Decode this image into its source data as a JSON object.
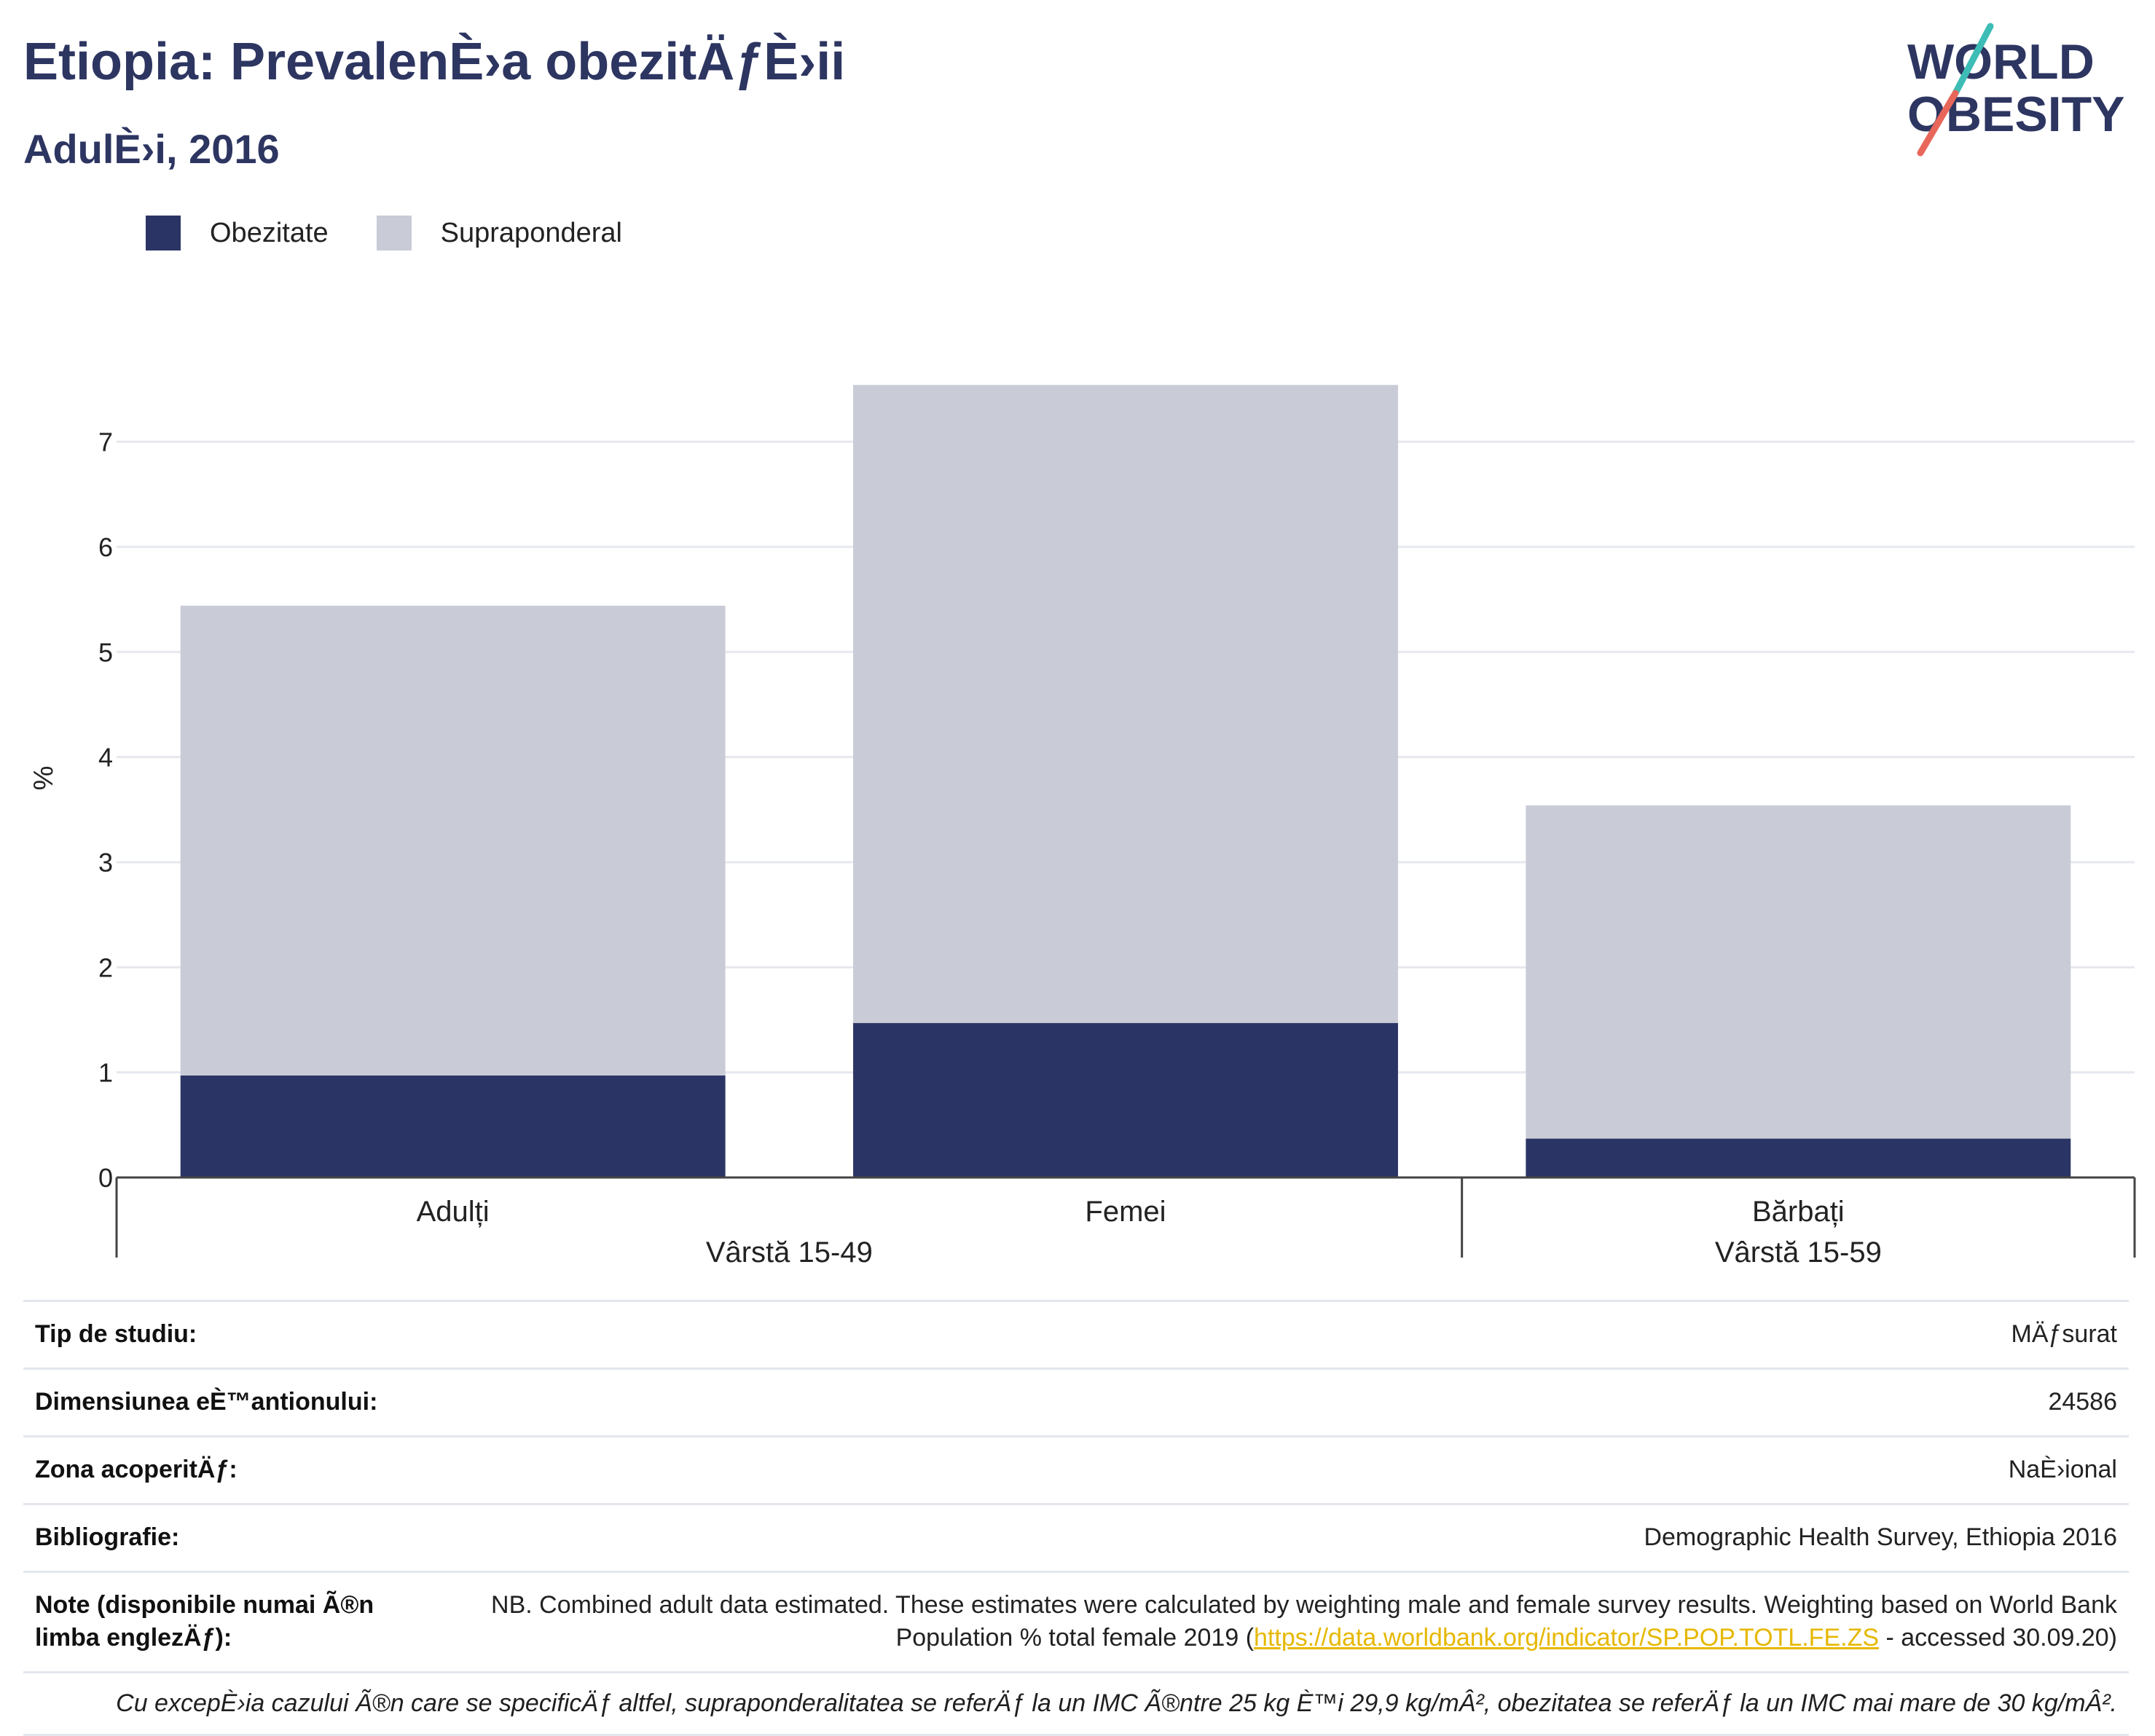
{
  "header": {
    "title": "Etiopia: PrevalenÈ›a obezitÄƒÈ›ii",
    "subtitle": "AdulÈ›i, 2016"
  },
  "logo": {
    "line1": "WORLD",
    "line2": "OBESITY",
    "colors": {
      "text": "#2d3561",
      "slash_top": "#3dbdb5",
      "slash_bottom": "#e8675a"
    }
  },
  "legend": [
    {
      "label": "Obezitate",
      "color": "#2b3565"
    },
    {
      "label": "Supraponderal",
      "color": "#c9cbd7"
    }
  ],
  "chart_data": {
    "type": "bar",
    "stacked": true,
    "categories": [
      "Adulți",
      "Femei",
      "Bărbați"
    ],
    "groups": [
      {
        "label": "Vârstă 15-49",
        "categories": [
          "Adulți",
          "Femei"
        ]
      },
      {
        "label": "Vârstă 15-59",
        "categories": [
          "Bărbați"
        ]
      }
    ],
    "series": [
      {
        "name": "Obezitate",
        "values": [
          0.97,
          1.47,
          0.37
        ],
        "color": "#2b3565"
      },
      {
        "name": "Supraponderal",
        "values": [
          4.47,
          6.07,
          3.17
        ],
        "color": "#c9cbd7"
      }
    ],
    "ylabel": "%",
    "ylim": [
      0,
      7.6
    ],
    "yticks": [
      0,
      1,
      2,
      3,
      4,
      5,
      6,
      7
    ],
    "grid": true,
    "legend_position": "top-left"
  },
  "info": {
    "rows": [
      {
        "label": "Tip de studiu:",
        "value": "MÄƒsurat"
      },
      {
        "label": "Dimensiunea eÈ™antionului:",
        "value": "24586"
      },
      {
        "label": "Zona acoperitÄƒ:",
        "value": "NaÈ›ional"
      },
      {
        "label": "Bibliografie:",
        "value": "Demographic Health Survey, Ethiopia 2016"
      }
    ],
    "note": {
      "label": "Note (disponibile numai Ã®n limba englezÄƒ):",
      "text_before": "NB. Combined adult data estimated. These estimates were calculated by weighting male and female survey results. Weighting based on World Bank Population % total female 2019 (",
      "link": "https://data.worldbank.org/indicator/SP.POP.TOTL.FE.ZS",
      "text_after": " - accessed 30.09.20)"
    },
    "footnote": "Cu excepÈ›ia cazului Ã®n care se specificÄƒ altfel, supraponderalitatea se referÄƒ la un IMC Ã®ntre 25 kg È™i 29,9 kg/mÂ², obezitatea se referÄƒ la un IMC mai mare de 30 kg/mÂ²."
  }
}
